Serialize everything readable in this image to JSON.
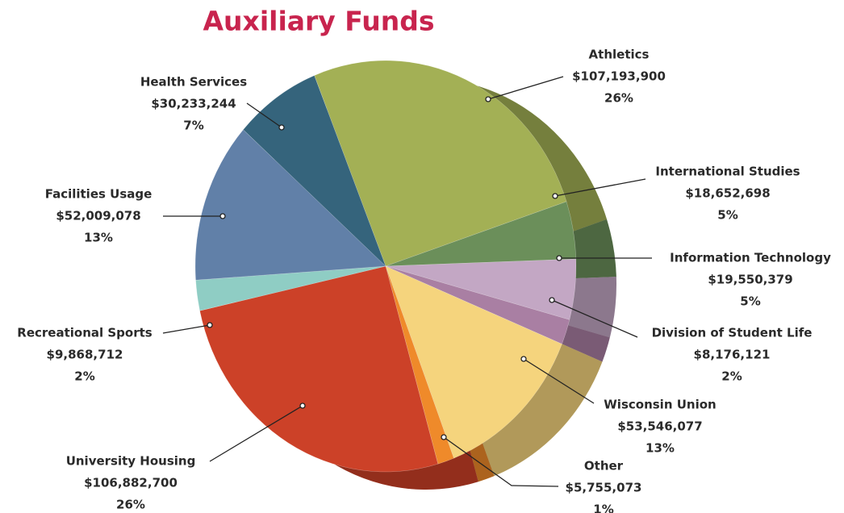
{
  "chart_data": {
    "type": "pie",
    "title": "Auxiliary Funds",
    "categories": [
      "Athletics",
      "International Studies",
      "Information Technology",
      "Division of Student Life",
      "Wisconsin Union",
      "Other",
      "University Housing",
      "Recreational Sports",
      "Facilities Usage",
      "Health Services"
    ],
    "values": [
      107193900,
      18652698,
      19550379,
      8176121,
      53546077,
      5755073,
      106882700,
      9868712,
      52009078,
      30233244
    ],
    "value_labels": [
      "$107,193,900",
      "$18,652,698",
      "$19,550,379",
      "$8,176,121",
      "$53,546,077",
      "$5,755,073",
      "$106,882,700",
      "$9,868,712",
      "$52,009,078",
      "$30,233,244"
    ],
    "percent_labels": [
      "26%",
      "5%",
      "5%",
      "2%",
      "13%",
      "1%",
      "26%",
      "2%",
      "13%",
      "7%"
    ],
    "colors": [
      "#a3b055",
      "#6b8f5a",
      "#c3a7c4",
      "#a97fa3",
      "#f5d47d",
      "#ef8a2a",
      "#cc4128",
      "#8fcdc4",
      "#6180a8",
      "#35647c"
    ]
  }
}
